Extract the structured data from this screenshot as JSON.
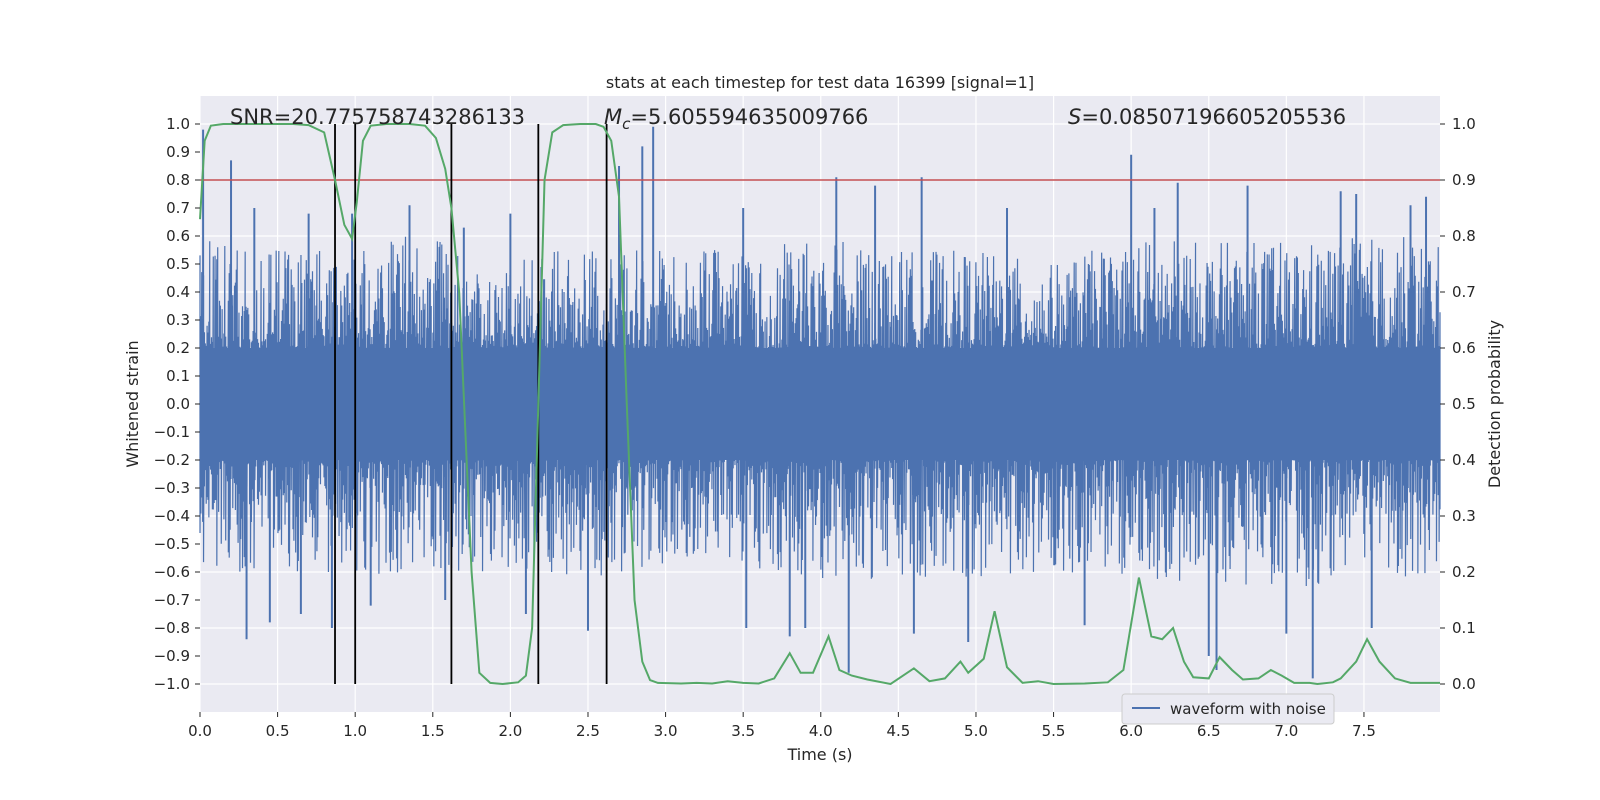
{
  "chart_data": {
    "type": "line",
    "title": "stats at each timestep for test data 16399 [signal=1]",
    "xlabel": "Time (s)",
    "ylabel": "Whitened strain",
    "y2label": "Detection probability",
    "xlim": [
      0.0,
      7.99
    ],
    "ylim": [
      -1.1,
      1.1
    ],
    "y2lim": [
      -0.05,
      1.05
    ],
    "x_ticks": [
      "0.0",
      "0.5",
      "1.0",
      "1.5",
      "2.0",
      "2.5",
      "3.0",
      "3.5",
      "4.0",
      "4.5",
      "5.0",
      "5.5",
      "6.0",
      "6.5",
      "7.0",
      "7.5"
    ],
    "y_ticks": [
      "1.0",
      "0.9",
      "0.8",
      "0.7",
      "0.6",
      "0.5",
      "0.4",
      "0.3",
      "0.2",
      "0.1",
      "0.0",
      "-0.1",
      "-0.2",
      "-0.3",
      "-0.4",
      "-0.5",
      "-0.6",
      "-0.7",
      "-0.8",
      "-0.9",
      "-1.0"
    ],
    "y2_ticks": [
      "1.0",
      "0.9",
      "0.8",
      "0.7",
      "0.6",
      "0.5",
      "0.4",
      "0.3",
      "0.2",
      "0.1",
      "0.0"
    ],
    "grid": true,
    "legend": {
      "position": "bottom-right",
      "entries": [
        "waveform with noise"
      ]
    },
    "annotations": {
      "snr": "SNR=20.775758743286133",
      "mc_symbol": "M",
      "mc_subscript": "c",
      "mc_value": "=5.605594635009766",
      "s_symbol": "S",
      "s_value": "=0.08507196605205536"
    },
    "threshold_line": {
      "axis": "y2",
      "value": 0.9,
      "color": "#c44e52"
    },
    "vertical_lines": [
      0.87,
      1.0,
      1.62,
      2.18,
      2.62
    ],
    "waveform": {
      "name": "waveform with noise",
      "color": "#4c72b0",
      "envelope": [
        [
          0.0,
          0.62,
          -0.6
        ],
        [
          0.25,
          0.55,
          -0.62
        ],
        [
          0.5,
          0.55,
          -0.6
        ],
        [
          0.75,
          0.55,
          -0.6
        ],
        [
          1.0,
          0.55,
          -0.62
        ],
        [
          1.25,
          0.6,
          -0.6
        ],
        [
          1.5,
          0.6,
          -0.62
        ],
        [
          1.75,
          0.5,
          -0.6
        ],
        [
          2.0,
          0.5,
          -0.6
        ],
        [
          2.25,
          0.55,
          -0.6
        ],
        [
          2.5,
          0.55,
          -0.62
        ],
        [
          2.75,
          0.55,
          -0.62
        ],
        [
          3.0,
          0.55,
          -0.6
        ],
        [
          3.5,
          0.55,
          -0.62
        ],
        [
          4.0,
          0.6,
          -0.65
        ],
        [
          4.5,
          0.55,
          -0.62
        ],
        [
          5.0,
          0.55,
          -0.62
        ],
        [
          5.5,
          0.5,
          -0.6
        ],
        [
          6.0,
          0.6,
          -0.65
        ],
        [
          6.5,
          0.58,
          -0.65
        ],
        [
          7.0,
          0.58,
          -0.65
        ],
        [
          7.5,
          0.6,
          -0.65
        ],
        [
          7.99,
          0.6,
          -0.6
        ]
      ],
      "spikes": [
        [
          0.02,
          0.98
        ],
        [
          0.2,
          0.87
        ],
        [
          0.3,
          -0.84
        ],
        [
          0.35,
          0.7
        ],
        [
          0.45,
          -0.78
        ],
        [
          0.65,
          -0.75
        ],
        [
          0.7,
          0.68
        ],
        [
          0.85,
          -0.8
        ],
        [
          0.98,
          0.68
        ],
        [
          1.1,
          -0.72
        ],
        [
          1.35,
          0.71
        ],
        [
          1.58,
          -0.7
        ],
        [
          1.7,
          0.63
        ],
        [
          2.0,
          0.68
        ],
        [
          2.1,
          -0.75
        ],
        [
          2.5,
          -0.81
        ],
        [
          2.7,
          0.85
        ],
        [
          2.85,
          0.92
        ],
        [
          2.92,
          0.99
        ],
        [
          3.5,
          0.7
        ],
        [
          3.52,
          -0.8
        ],
        [
          3.8,
          -0.83
        ],
        [
          3.9,
          -0.8
        ],
        [
          4.1,
          0.81
        ],
        [
          4.18,
          -0.96
        ],
        [
          4.35,
          0.78
        ],
        [
          4.6,
          -0.82
        ],
        [
          4.65,
          0.81
        ],
        [
          4.95,
          -0.85
        ],
        [
          5.2,
          0.7
        ],
        [
          5.7,
          -0.79
        ],
        [
          6.0,
          0.89
        ],
        [
          6.15,
          0.7
        ],
        [
          6.3,
          0.79
        ],
        [
          6.5,
          -0.9
        ],
        [
          6.55,
          -0.95
        ],
        [
          6.75,
          0.78
        ],
        [
          7.0,
          -0.82
        ],
        [
          7.17,
          -0.98
        ],
        [
          7.35,
          0.76
        ],
        [
          7.45,
          0.75
        ],
        [
          7.55,
          -0.8
        ],
        [
          7.8,
          0.71
        ],
        [
          7.9,
          0.74
        ]
      ]
    },
    "series": [
      {
        "name": "detection probability",
        "axis": "y2",
        "color": "#55a868",
        "points": [
          [
            0.0,
            0.83
          ],
          [
            0.03,
            0.97
          ],
          [
            0.07,
            0.997
          ],
          [
            0.15,
            1.0
          ],
          [
            0.3,
            1.0
          ],
          [
            0.5,
            1.0
          ],
          [
            0.6,
            1.0
          ],
          [
            0.7,
            0.998
          ],
          [
            0.8,
            0.985
          ],
          [
            0.87,
            0.9
          ],
          [
            0.93,
            0.82
          ],
          [
            0.98,
            0.795
          ],
          [
            1.01,
            0.86
          ],
          [
            1.05,
            0.97
          ],
          [
            1.1,
            0.997
          ],
          [
            1.2,
            1.0
          ],
          [
            1.35,
            1.0
          ],
          [
            1.45,
            0.997
          ],
          [
            1.52,
            0.975
          ],
          [
            1.58,
            0.92
          ],
          [
            1.62,
            0.85
          ],
          [
            1.67,
            0.7
          ],
          [
            1.71,
            0.45
          ],
          [
            1.75,
            0.2
          ],
          [
            1.8,
            0.02
          ],
          [
            1.87,
            0.002
          ],
          [
            1.95,
            0.0
          ],
          [
            2.05,
            0.003
          ],
          [
            2.1,
            0.015
          ],
          [
            2.14,
            0.1
          ],
          [
            2.18,
            0.5
          ],
          [
            2.22,
            0.9
          ],
          [
            2.27,
            0.985
          ],
          [
            2.34,
            0.998
          ],
          [
            2.45,
            1.0
          ],
          [
            2.55,
            1.0
          ],
          [
            2.6,
            0.995
          ],
          [
            2.65,
            0.97
          ],
          [
            2.7,
            0.87
          ],
          [
            2.75,
            0.5
          ],
          [
            2.8,
            0.15
          ],
          [
            2.85,
            0.04
          ],
          [
            2.9,
            0.007
          ],
          [
            2.95,
            0.002
          ],
          [
            3.1,
            0.001
          ],
          [
            3.2,
            0.002
          ],
          [
            3.3,
            0.001
          ],
          [
            3.4,
            0.005
          ],
          [
            3.5,
            0.002
          ],
          [
            3.6,
            0.001
          ],
          [
            3.7,
            0.01
          ],
          [
            3.8,
            0.055
          ],
          [
            3.87,
            0.02
          ],
          [
            3.95,
            0.02
          ],
          [
            4.05,
            0.085
          ],
          [
            4.12,
            0.025
          ],
          [
            4.2,
            0.015
          ],
          [
            4.3,
            0.008
          ],
          [
            4.45,
            0.0
          ],
          [
            4.6,
            0.028
          ],
          [
            4.7,
            0.005
          ],
          [
            4.8,
            0.01
          ],
          [
            4.9,
            0.04
          ],
          [
            4.95,
            0.02
          ],
          [
            5.05,
            0.045
          ],
          [
            5.12,
            0.13
          ],
          [
            5.2,
            0.03
          ],
          [
            5.3,
            0.002
          ],
          [
            5.4,
            0.005
          ],
          [
            5.5,
            0.0
          ],
          [
            5.7,
            0.001
          ],
          [
            5.85,
            0.003
          ],
          [
            5.95,
            0.025
          ],
          [
            6.05,
            0.19
          ],
          [
            6.13,
            0.085
          ],
          [
            6.2,
            0.08
          ],
          [
            6.27,
            0.1
          ],
          [
            6.34,
            0.04
          ],
          [
            6.4,
            0.012
          ],
          [
            6.5,
            0.01
          ],
          [
            6.57,
            0.048
          ],
          [
            6.65,
            0.025
          ],
          [
            6.72,
            0.008
          ],
          [
            6.82,
            0.01
          ],
          [
            6.9,
            0.025
          ],
          [
            6.97,
            0.015
          ],
          [
            7.05,
            0.002
          ],
          [
            7.15,
            0.002
          ],
          [
            7.2,
            0.0
          ],
          [
            7.3,
            0.003
          ],
          [
            7.35,
            0.01
          ],
          [
            7.45,
            0.04
          ],
          [
            7.52,
            0.08
          ],
          [
            7.6,
            0.04
          ],
          [
            7.7,
            0.01
          ],
          [
            7.8,
            0.002
          ],
          [
            7.99,
            0.002
          ]
        ]
      }
    ]
  }
}
